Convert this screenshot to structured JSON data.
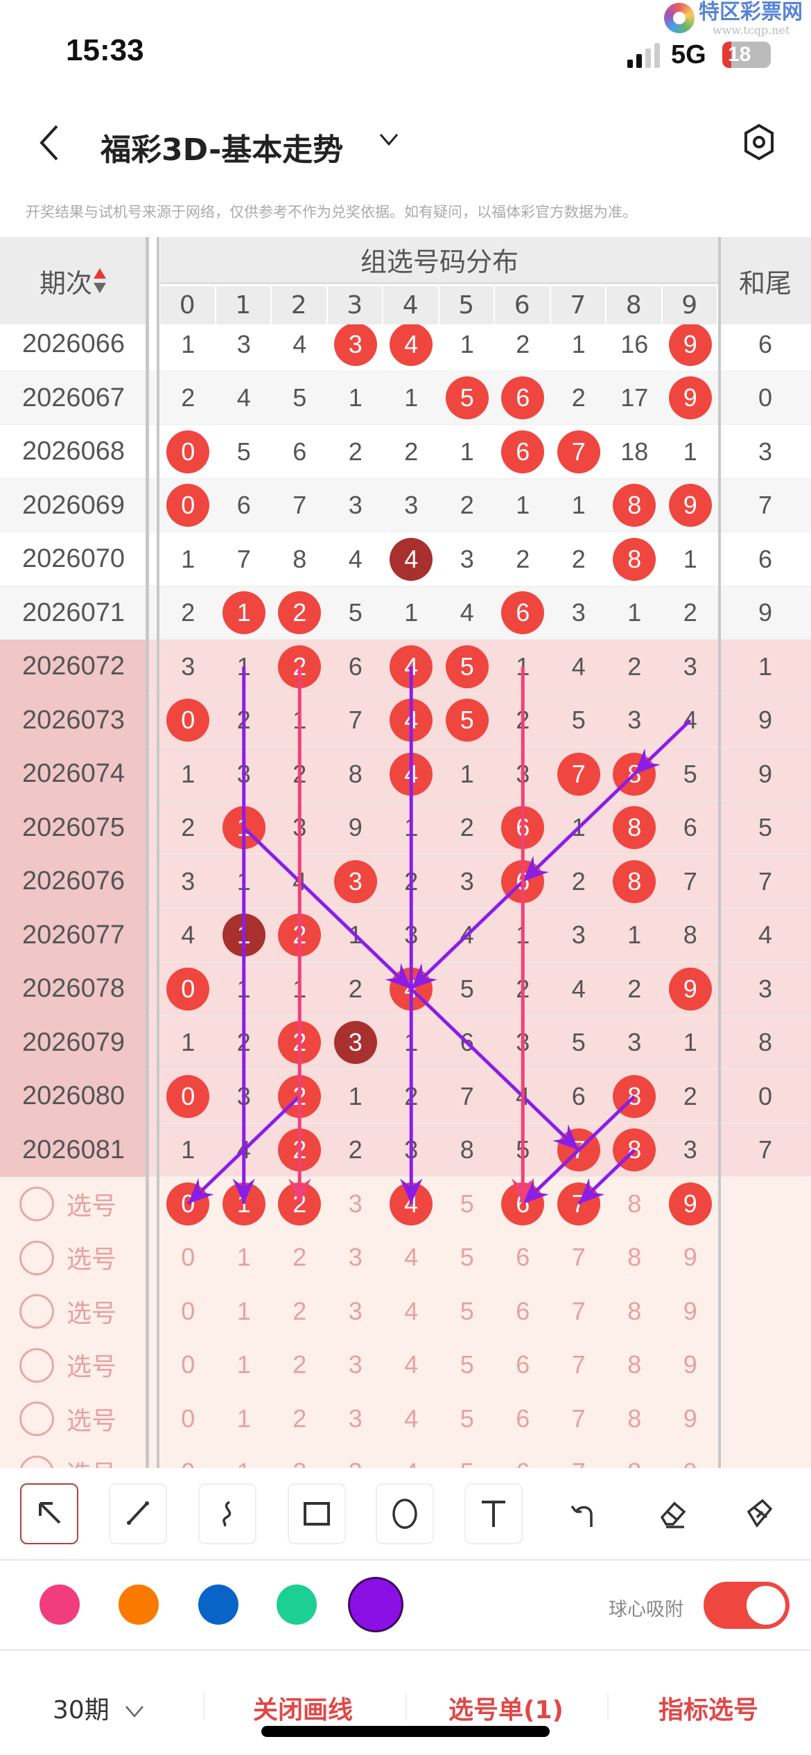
{
  "status_bar": {
    "time": "15:33",
    "network": "5G",
    "battery": "18",
    "battery_level": 0.18
  },
  "watermark": {
    "name": "特区彩票网",
    "url": "www.tcqp.net"
  },
  "header": {
    "title": "福彩3D-基本走势",
    "back_icon": "chevron-left-icon",
    "dropdown_icon": "chevron-down-icon",
    "settings_icon": "hexagon-settings-icon"
  },
  "disclaimer": "开奖结果与试机号来源于网络，仅供参考不作为兑奖依据。如有疑问，以福体彩官方数据为准。",
  "table": {
    "period_header": "期次",
    "group_header": "组选号码分布",
    "digits": [
      "0",
      "1",
      "2",
      "3",
      "4",
      "5",
      "6",
      "7",
      "8",
      "9"
    ],
    "sum_header": "和尾",
    "colors": {
      "ball": "#ef4640",
      "ball_repeat": "#a8302e",
      "highlight_rows": "#f9dcdc",
      "select_rows": "#fdf0ea"
    },
    "rows": [
      {
        "period": "2026066",
        "values": [
          "1",
          "3",
          "4",
          "3",
          "4",
          "1",
          "2",
          "1",
          "16",
          "9"
        ],
        "balls": [
          3,
          4,
          9
        ],
        "repeat": [],
        "sum": "6"
      },
      {
        "period": "2026067",
        "values": [
          "2",
          "4",
          "5",
          "1",
          "1",
          "5",
          "6",
          "2",
          "17",
          "9"
        ],
        "balls": [
          5,
          6,
          9
        ],
        "repeat": [],
        "sum": "0"
      },
      {
        "period": "2026068",
        "values": [
          "0",
          "5",
          "6",
          "2",
          "2",
          "1",
          "6",
          "7",
          "18",
          "1"
        ],
        "balls": [
          0,
          6,
          7
        ],
        "repeat": [],
        "sum": "3"
      },
      {
        "period": "2026069",
        "values": [
          "0",
          "6",
          "7",
          "3",
          "3",
          "2",
          "1",
          "1",
          "8",
          "9"
        ],
        "balls": [
          0,
          8,
          9
        ],
        "repeat": [],
        "sum": "7"
      },
      {
        "period": "2026070",
        "values": [
          "1",
          "7",
          "8",
          "4",
          "4",
          "3",
          "2",
          "2",
          "8",
          "1"
        ],
        "balls": [
          4,
          8
        ],
        "repeat": [
          4
        ],
        "sum": "6"
      },
      {
        "period": "2026071",
        "values": [
          "2",
          "1",
          "2",
          "5",
          "1",
          "4",
          "6",
          "3",
          "1",
          "2"
        ],
        "balls": [
          1,
          2,
          6
        ],
        "repeat": [],
        "sum": "9"
      },
      {
        "period": "2026072",
        "values": [
          "3",
          "1",
          "2",
          "6",
          "4",
          "5",
          "1",
          "4",
          "2",
          "3"
        ],
        "balls": [
          2,
          4,
          5
        ],
        "repeat": [],
        "sum": "1",
        "highlight": true
      },
      {
        "period": "2026073",
        "values": [
          "0",
          "2",
          "1",
          "7",
          "4",
          "5",
          "2",
          "5",
          "3",
          "4"
        ],
        "balls": [
          0,
          4,
          5
        ],
        "repeat": [],
        "sum": "9",
        "highlight": true
      },
      {
        "period": "2026074",
        "values": [
          "1",
          "3",
          "2",
          "8",
          "4",
          "1",
          "3",
          "7",
          "8",
          "5"
        ],
        "balls": [
          4,
          7,
          8
        ],
        "repeat": [],
        "sum": "9",
        "highlight": true
      },
      {
        "period": "2026075",
        "values": [
          "2",
          "1",
          "3",
          "9",
          "1",
          "2",
          "6",
          "1",
          "8",
          "6"
        ],
        "balls": [
          1,
          6,
          8
        ],
        "repeat": [],
        "sum": "5",
        "highlight": true
      },
      {
        "period": "2026076",
        "values": [
          "3",
          "1",
          "4",
          "3",
          "2",
          "3",
          "6",
          "2",
          "8",
          "7"
        ],
        "balls": [
          3,
          6,
          8
        ],
        "repeat": [],
        "sum": "7",
        "highlight": true
      },
      {
        "period": "2026077",
        "values": [
          "4",
          "1",
          "2",
          "1",
          "3",
          "4",
          "1",
          "3",
          "1",
          "8"
        ],
        "balls": [
          1,
          2
        ],
        "repeat": [
          1
        ],
        "sum": "4",
        "highlight": true
      },
      {
        "period": "2026078",
        "values": [
          "0",
          "1",
          "1",
          "2",
          "4",
          "5",
          "2",
          "4",
          "2",
          "9"
        ],
        "balls": [
          0,
          4,
          9
        ],
        "repeat": [],
        "sum": "3",
        "highlight": true
      },
      {
        "period": "2026079",
        "values": [
          "1",
          "2",
          "2",
          "3",
          "1",
          "6",
          "3",
          "5",
          "3",
          "1"
        ],
        "balls": [
          2,
          3
        ],
        "repeat": [
          3
        ],
        "sum": "8",
        "highlight": true
      },
      {
        "period": "2026080",
        "values": [
          "0",
          "3",
          "2",
          "1",
          "2",
          "7",
          "4",
          "6",
          "8",
          "2"
        ],
        "balls": [
          0,
          2,
          8
        ],
        "repeat": [],
        "sum": "0",
        "highlight": true
      },
      {
        "period": "2026081",
        "values": [
          "1",
          "4",
          "2",
          "2",
          "3",
          "8",
          "5",
          "7",
          "8",
          "3"
        ],
        "balls": [
          2,
          7,
          8
        ],
        "repeat": [],
        "sum": "7",
        "highlight": true
      }
    ],
    "select_label": "选号",
    "select_rows": [
      {
        "selected": [
          0,
          1,
          2,
          4,
          6,
          7,
          9
        ]
      },
      {
        "selected": []
      },
      {
        "selected": []
      },
      {
        "selected": []
      },
      {
        "selected": []
      },
      {
        "selected": []
      }
    ]
  },
  "drawings": [
    {
      "color": "#8a1ee6",
      "from": [
        "2026072",
        1
      ],
      "to": [
        "select1",
        1
      ]
    },
    {
      "color": "#8a1ee6",
      "from": [
        "2026072",
        4
      ],
      "to": [
        "select1",
        4
      ]
    },
    {
      "color": "#8a1ee6",
      "from": [
        "2026073",
        9
      ],
      "to": [
        "2026074",
        8
      ]
    },
    {
      "color": "#8a1ee6",
      "from": [
        "2026074",
        8
      ],
      "to": [
        "2026076",
        6
      ]
    },
    {
      "color": "#8a1ee6",
      "from": [
        "2026076",
        6
      ],
      "to": [
        "2026078",
        4
      ]
    },
    {
      "color": "#8a1ee6",
      "from": [
        "2026075",
        1
      ],
      "to": [
        "2026078",
        4
      ]
    },
    {
      "color": "#8a1ee6",
      "from": [
        "2026078",
        4
      ],
      "to": [
        "2026081",
        7
      ]
    },
    {
      "color": "#8a1ee6",
      "from": [
        "2026080",
        2
      ],
      "to": [
        "select1",
        0
      ]
    },
    {
      "color": "#8a1ee6",
      "from": [
        "2026080",
        8
      ],
      "to": [
        "select1",
        6
      ]
    },
    {
      "color": "#8a1ee6",
      "from": [
        "2026081",
        8
      ],
      "to": [
        "select1",
        7
      ]
    },
    {
      "color": "#f0407a",
      "from": [
        "2026072",
        2
      ],
      "to": [
        "select1",
        2
      ]
    },
    {
      "color": "#f0407a",
      "from": [
        "2026072",
        6
      ],
      "to": [
        "select1",
        6
      ]
    }
  ],
  "toolbar": {
    "tools": [
      "arrow",
      "line",
      "freehand",
      "rectangle",
      "circle",
      "text",
      "undo",
      "eraser",
      "clear"
    ],
    "active": "arrow"
  },
  "palette": {
    "colors": [
      "#f23d7c",
      "#fa7a00",
      "#0a64c8",
      "#1ccf93",
      "#8a10e6"
    ],
    "selected": "#8a10e6"
  },
  "snap": {
    "label": "球心吸附",
    "on": true
  },
  "bottom": {
    "periods": "30期",
    "close_drawing": "关闭画线",
    "selection_list": "选号单(1)",
    "indicator_select": "指标选号"
  }
}
